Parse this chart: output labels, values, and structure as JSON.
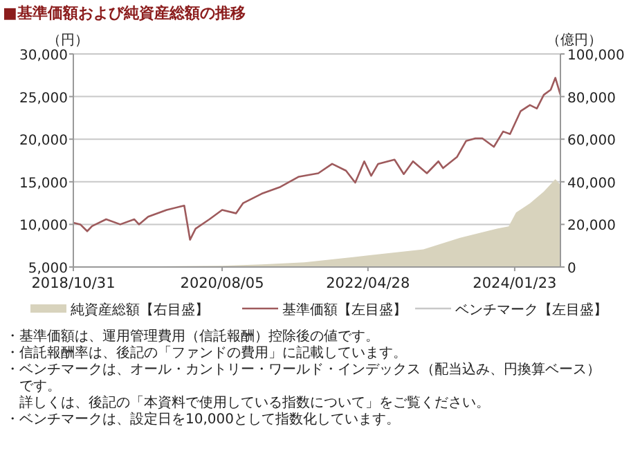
{
  "chart_data": {
    "type": "line",
    "title": "■基準価額および純資産総額の推移",
    "ylabel": "（円）",
    "y2label": "（億円）",
    "xlim": [
      "2018-10-31",
      "2024-08-08"
    ],
    "xticks": [
      {
        "value": "2018-10-31",
        "label": "2018/10/31"
      },
      {
        "value": "2020-08-05",
        "label": "2020/08/05"
      },
      {
        "value": "2022-04-28",
        "label": "2022/04/28"
      },
      {
        "value": "2024-01-23",
        "label": "2024/01/23"
      }
    ],
    "ylim": [
      5000,
      30000
    ],
    "yticks": [
      {
        "value": 5000,
        "label": "5,000"
      },
      {
        "value": 10000,
        "label": "10,000"
      },
      {
        "value": 15000,
        "label": "15,000"
      },
      {
        "value": 20000,
        "label": "20,000"
      },
      {
        "value": 25000,
        "label": "25,000"
      },
      {
        "value": 30000,
        "label": "30,000"
      }
    ],
    "y2lim": [
      0,
      100000
    ],
    "y2ticks": [
      0,
      {
        "value": 20000,
        "label": "20,000"
      },
      {
        "value": 40000,
        "label": "40,000"
      },
      {
        "value": 60000,
        "label": "60,000"
      },
      {
        "value": 80000,
        "label": "80,000"
      },
      {
        "value": 100000,
        "label": "100,000"
      }
    ],
    "grid": "y",
    "legend": "bottom",
    "x": [
      "2018-10-31",
      "2018-11-30",
      "2018-12-30",
      "2019-01-20",
      "2019-03-22",
      "2019-05-22",
      "2019-07-22",
      "2019-08-11",
      "2019-09-20",
      "2019-12-09",
      "2020-02-07",
      "2020-02-23",
      "2020-03-19",
      "2020-04-12",
      "2020-06-11",
      "2020-08-05",
      "2020-10-04",
      "2020-11-04",
      "2021-01-23",
      "2021-04-14",
      "2021-07-03",
      "2021-09-25",
      "2021-11-24",
      "2022-01-23",
      "2022-03-04",
      "2022-04-12",
      "2022-05-12",
      "2022-06-11",
      "2022-08-21",
      "2022-09-30",
      "2022-11-09",
      "2023-01-08",
      "2023-02-27",
      "2023-03-19",
      "2023-05-18",
      "2023-06-27",
      "2023-08-06",
      "2023-09-05",
      "2023-10-25",
      "2023-12-04",
      "2024-01-03",
      "2024-02-18",
      "2024-03-29",
      "2024-04-28",
      "2024-05-28",
      "2024-06-27",
      "2024-07-17",
      "2024-08-08"
    ],
    "series": [
      {
        "name": "純資産総額【右目盛】",
        "type": "area",
        "axis": "y2",
        "color": "#d8d3bd",
        "x": [
          "2018-10-31",
          "2019-06-01",
          "2020-08-05",
          "2021-01-23",
          "2021-07-27",
          "2022-04-28",
          "2022-12-24",
          "2023-06-01",
          "2023-11-08",
          "2023-12-28",
          "2024-01-29",
          "2024-03-29",
          "2024-05-28",
          "2024-07-17",
          "2024-08-08"
        ],
        "values": [
          0,
          200,
          600,
          1200,
          2200,
          5400,
          8300,
          13700,
          18000,
          19100,
          25600,
          29900,
          35400,
          41200,
          38600
        ]
      },
      {
        "name": "基準価額【左目盛】",
        "color": "#9e5a5c",
        "values": [
          10200,
          10000,
          9200,
          9800,
          10600,
          10000,
          10600,
          10000,
          10900,
          11700,
          12100,
          12200,
          8200,
          9500,
          10600,
          11700,
          11300,
          12500,
          13600,
          14400,
          15600,
          16000,
          17100,
          16300,
          14900,
          17400,
          15700,
          17100,
          17600,
          15900,
          17400,
          16000,
          17400,
          16600,
          17900,
          19800,
          20100,
          20100,
          19100,
          20900,
          20600,
          23300,
          24000,
          23600,
          25200,
          25800,
          27200,
          25200
        ]
      },
      {
        "name": "ベンチマーク【左目盛】",
        "color": "#c8c8c8",
        "values": [
          null,
          null,
          null,
          null,
          null,
          null,
          null,
          null,
          null,
          null,
          null,
          null,
          null,
          null,
          null,
          null,
          null,
          null,
          null,
          null,
          null,
          null,
          null,
          null,
          null,
          null,
          null,
          null,
          null,
          null,
          null,
          null,
          null,
          null,
          null,
          null,
          null,
          null,
          null,
          null,
          null,
          null,
          null,
          null,
          null,
          null,
          null,
          null
        ]
      }
    ],
    "annotations": [
      "・基準価額は、運用管理費用（信託報酬）控除後の値です。",
      "・信託報酬率は、後記の「ファンドの費用」に記載しています。",
      "・ベンチマークは、オール・カントリー・ワールド・インデックス（配当込み、円換算ベース）",
      "　です。",
      "　詳しくは、後記の「本資料で使用している指数について」をご覧ください。",
      "・ベンチマークは、設定日を10,000として指数化しています。"
    ]
  }
}
